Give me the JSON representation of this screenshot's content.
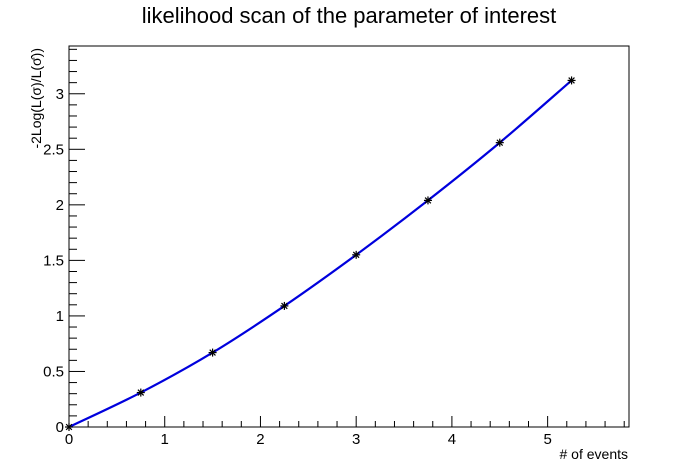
{
  "chart_data": {
    "type": "line",
    "title": "likelihood scan of the parameter of interest",
    "xlabel": "# of events",
    "ylabel": "-2Log(L(σ)/L(σ̂))",
    "xlim": [
      0,
      5.85
    ],
    "ylim": [
      0,
      3.43
    ],
    "grid": false,
    "legend": "none",
    "x_ticks": [
      "0",
      "1",
      "2",
      "3",
      "4",
      "5"
    ],
    "y_ticks": [
      "0",
      "0.5",
      "1",
      "1.5",
      "2",
      "2.5",
      "3"
    ],
    "series": [
      {
        "color": "#0000dd",
        "marker": "asterisk",
        "x": [
          0,
          0.75,
          1.5,
          2.25,
          3.0,
          3.75,
          4.5,
          5.25
        ],
        "y": [
          0,
          0.31,
          0.67,
          1.09,
          1.55,
          2.04,
          2.56,
          3.12
        ]
      }
    ]
  }
}
